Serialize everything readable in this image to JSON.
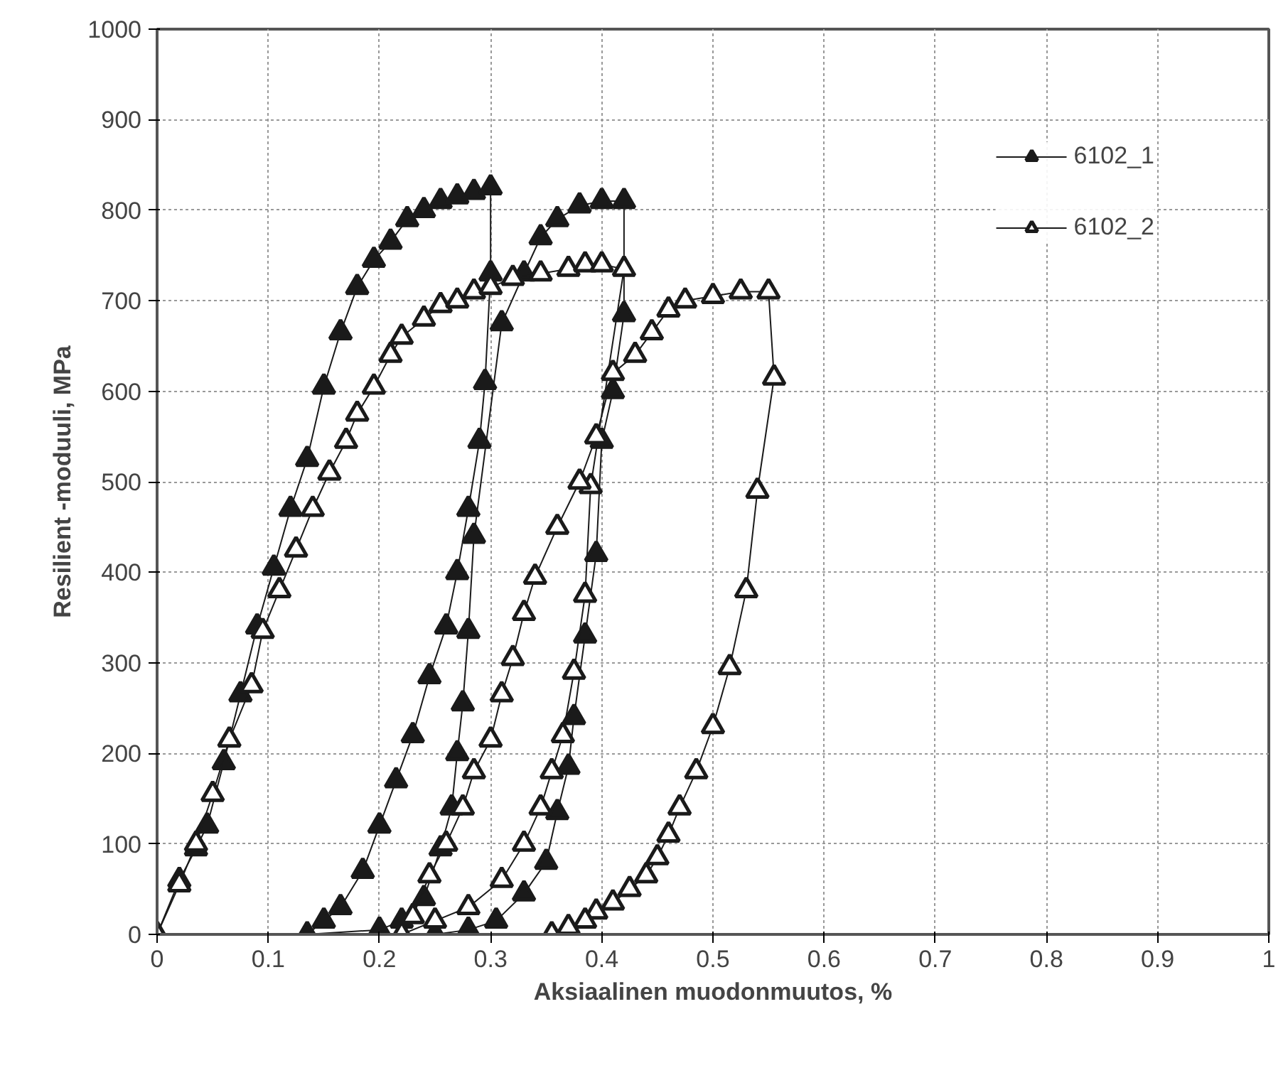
{
  "chart_data": {
    "type": "line",
    "xlabel": "Aksiaalinen muodonmuutos, %",
    "ylabel": "Resilient -moduuli, MPa",
    "xlim": [
      0,
      1
    ],
    "xticks": [
      0,
      0.1,
      0.2,
      0.3,
      0.4,
      0.5,
      0.6,
      0.7,
      0.8,
      0.9,
      1
    ],
    "ylim": [
      0,
      1000
    ],
    "yticks": [
      0,
      100,
      200,
      300,
      400,
      500,
      600,
      700,
      800,
      900,
      1000
    ],
    "grid": true,
    "legend": "top right",
    "line_style": "solid",
    "series": [
      {
        "name": "6102_1",
        "color": "#1a1a1a",
        "marker": "triangle",
        "x": [
          0,
          0.02,
          0.035,
          0.045,
          0.06,
          0.075,
          0.09,
          0.105,
          0.12,
          0.135,
          0.15,
          0.165,
          0.18,
          0.195,
          0.21,
          0.225,
          0.24,
          0.255,
          0.27,
          0.285,
          0.3,
          0.3,
          0.295,
          0.29,
          0.28,
          0.27,
          0.26,
          0.245,
          0.23,
          0.215,
          0.2,
          0.185,
          0.165,
          0.15,
          0.135,
          0.2,
          0.22,
          0.24,
          0.255,
          0.265,
          0.27,
          0.275,
          0.28,
          0.285,
          0.31,
          0.33,
          0.345,
          0.36,
          0.38,
          0.4,
          0.42,
          0.42,
          0.41,
          0.4,
          0.395,
          0.385,
          0.375,
          0.37,
          0.36,
          0.35,
          0.33,
          0.305,
          0.28,
          0.25
        ],
        "values": [
          0,
          60,
          95,
          120,
          190,
          265,
          340,
          405,
          470,
          525,
          605,
          665,
          715,
          745,
          765,
          790,
          800,
          810,
          815,
          820,
          825,
          730,
          610,
          545,
          470,
          400,
          340,
          285,
          220,
          170,
          120,
          70,
          30,
          15,
          0,
          5,
          15,
          40,
          95,
          140,
          200,
          255,
          335,
          440,
          675,
          730,
          770,
          790,
          805,
          810,
          810,
          685,
          600,
          545,
          420,
          330,
          240,
          185,
          135,
          80,
          45,
          15,
          5,
          0
        ]
      },
      {
        "name": "6102_2",
        "color": "#1a1a1a",
        "marker": "triangle",
        "x": [
          0,
          0.02,
          0.035,
          0.05,
          0.065,
          0.085,
          0.095,
          0.11,
          0.125,
          0.14,
          0.155,
          0.17,
          0.18,
          0.195,
          0.21,
          0.22,
          0.24,
          0.255,
          0.27,
          0.285,
          0.3,
          0.32,
          0.345,
          0.37,
          0.385,
          0.4,
          0.42,
          0.39,
          0.385,
          0.375,
          0.365,
          0.355,
          0.345,
          0.33,
          0.31,
          0.28,
          0.25,
          0.22,
          0.23,
          0.245,
          0.26,
          0.275,
          0.285,
          0.3,
          0.31,
          0.32,
          0.33,
          0.34,
          0.36,
          0.38,
          0.395,
          0.41,
          0.43,
          0.445,
          0.46,
          0.475,
          0.5,
          0.525,
          0.55,
          0.555,
          0.54,
          0.53,
          0.515,
          0.5,
          0.485,
          0.47,
          0.46,
          0.45,
          0.44,
          0.425,
          0.41,
          0.395,
          0.385,
          0.37,
          0.355
        ],
        "values": [
          0,
          55,
          100,
          155,
          215,
          275,
          335,
          380,
          425,
          470,
          510,
          545,
          575,
          605,
          640,
          660,
          680,
          695,
          700,
          710,
          715,
          725,
          730,
          735,
          740,
          740,
          735,
          495,
          375,
          290,
          220,
          180,
          140,
          100,
          60,
          30,
          15,
          0,
          20,
          65,
          100,
          140,
          180,
          215,
          265,
          305,
          355,
          395,
          450,
          500,
          550,
          620,
          640,
          665,
          690,
          700,
          705,
          710,
          710,
          615,
          490,
          380,
          295,
          230,
          180,
          140,
          110,
          85,
          65,
          50,
          35,
          25,
          15,
          8,
          0
        ]
      }
    ]
  }
}
